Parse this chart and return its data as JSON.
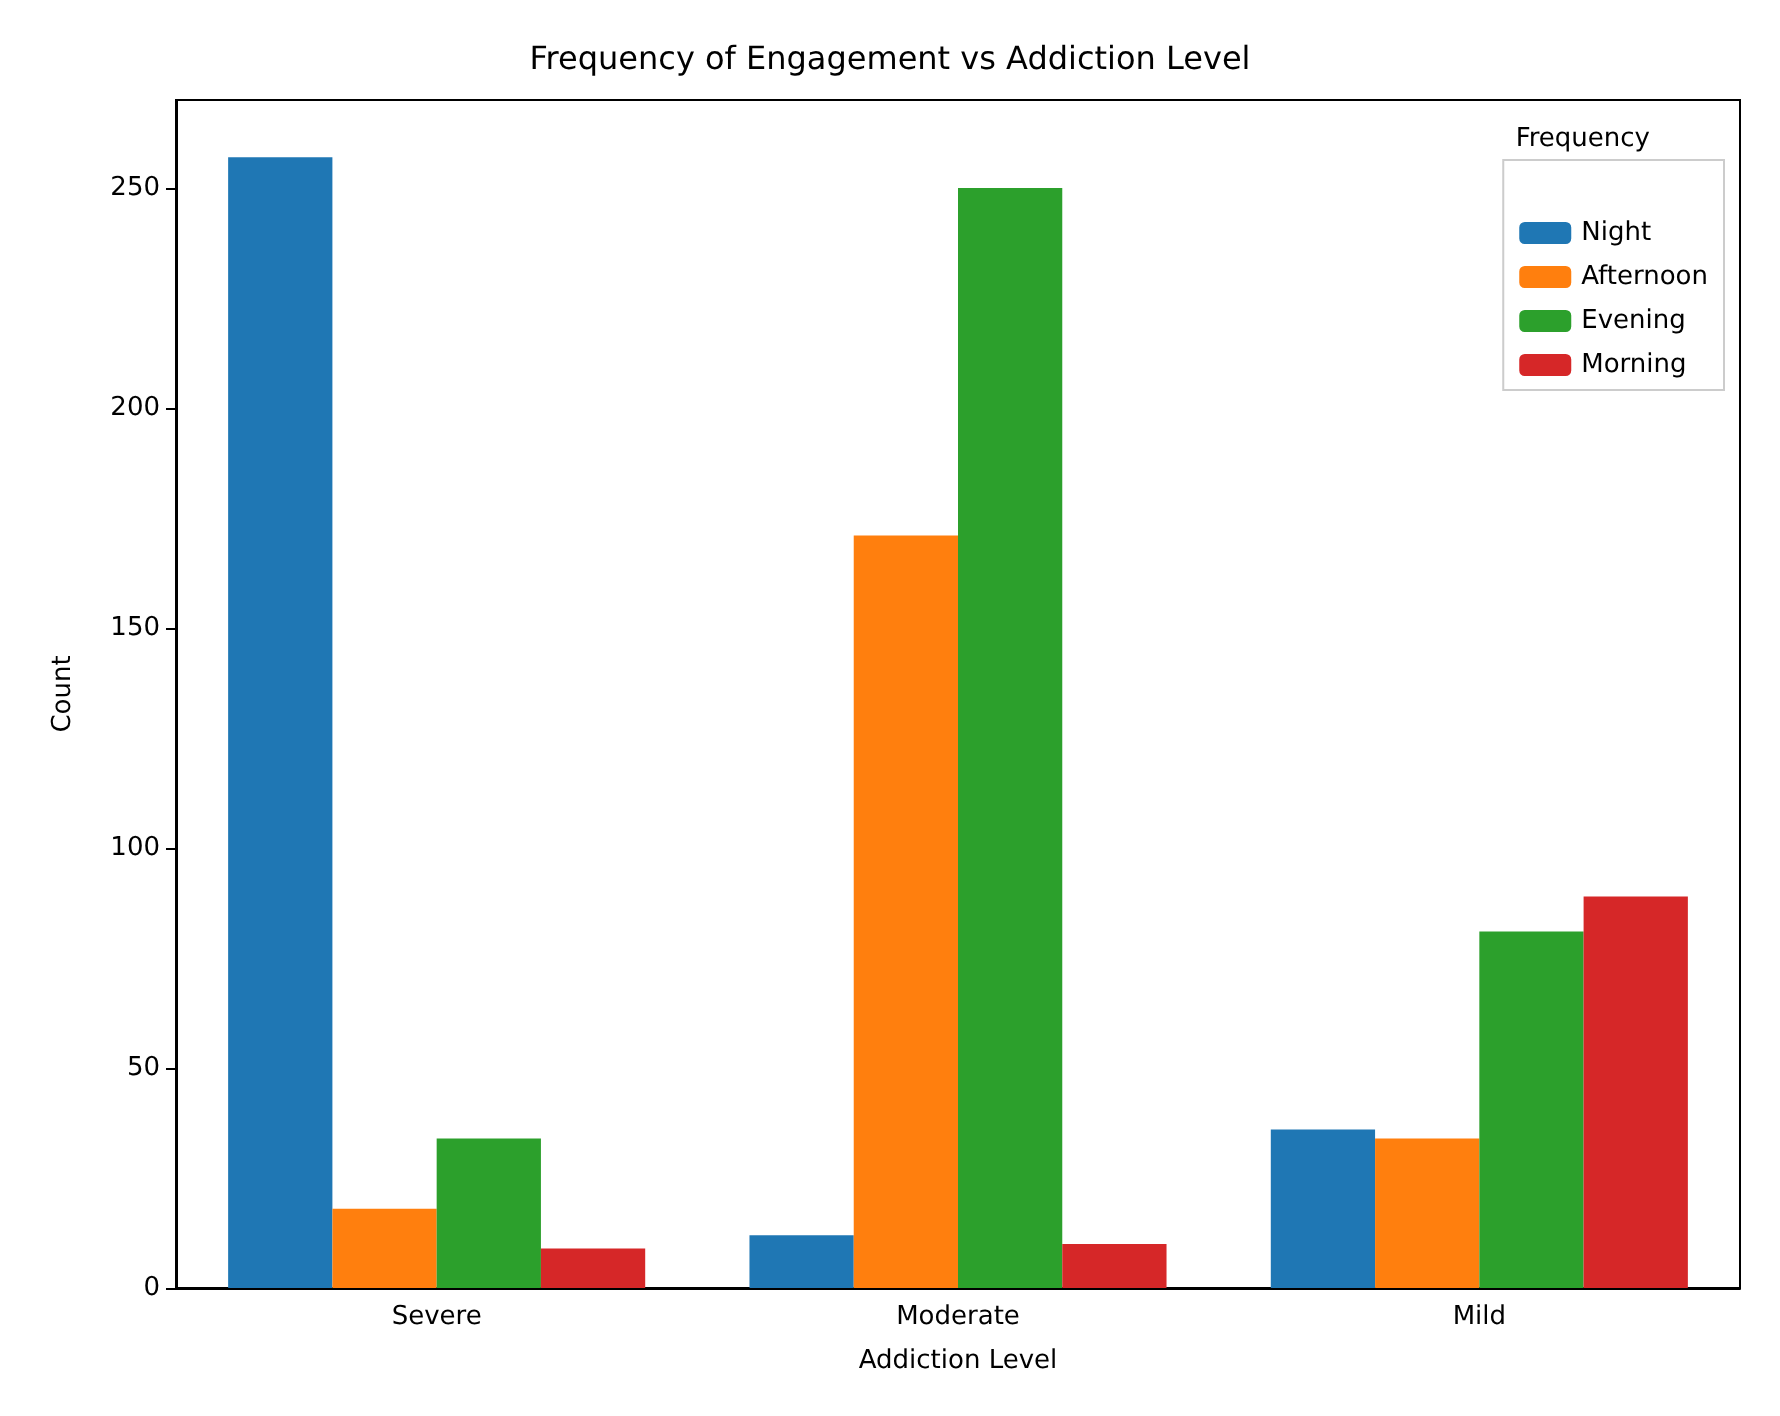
{
  "chart_data": {
    "type": "bar",
    "title": "Frequency of Engagement vs Addiction Level",
    "xlabel": "Addiction Level",
    "ylabel": "Count",
    "legend_title": "Frequency",
    "categories": [
      "Severe",
      "Moderate",
      "Mild"
    ],
    "series": [
      {
        "name": "Night",
        "color": "#1f77b4",
        "values": [
          257,
          12,
          36
        ]
      },
      {
        "name": "Afternoon",
        "color": "#ff7f0e",
        "values": [
          18,
          171,
          34
        ]
      },
      {
        "name": "Evening",
        "color": "#2ca02c",
        "values": [
          34,
          250,
          81
        ]
      },
      {
        "name": "Morning",
        "color": "#d62728",
        "values": [
          9,
          10,
          89
        ]
      }
    ],
    "ylim": [
      0,
      270
    ],
    "yticks": [
      0,
      50,
      100,
      150,
      200,
      250
    ],
    "grid": false,
    "legend": "top right"
  }
}
